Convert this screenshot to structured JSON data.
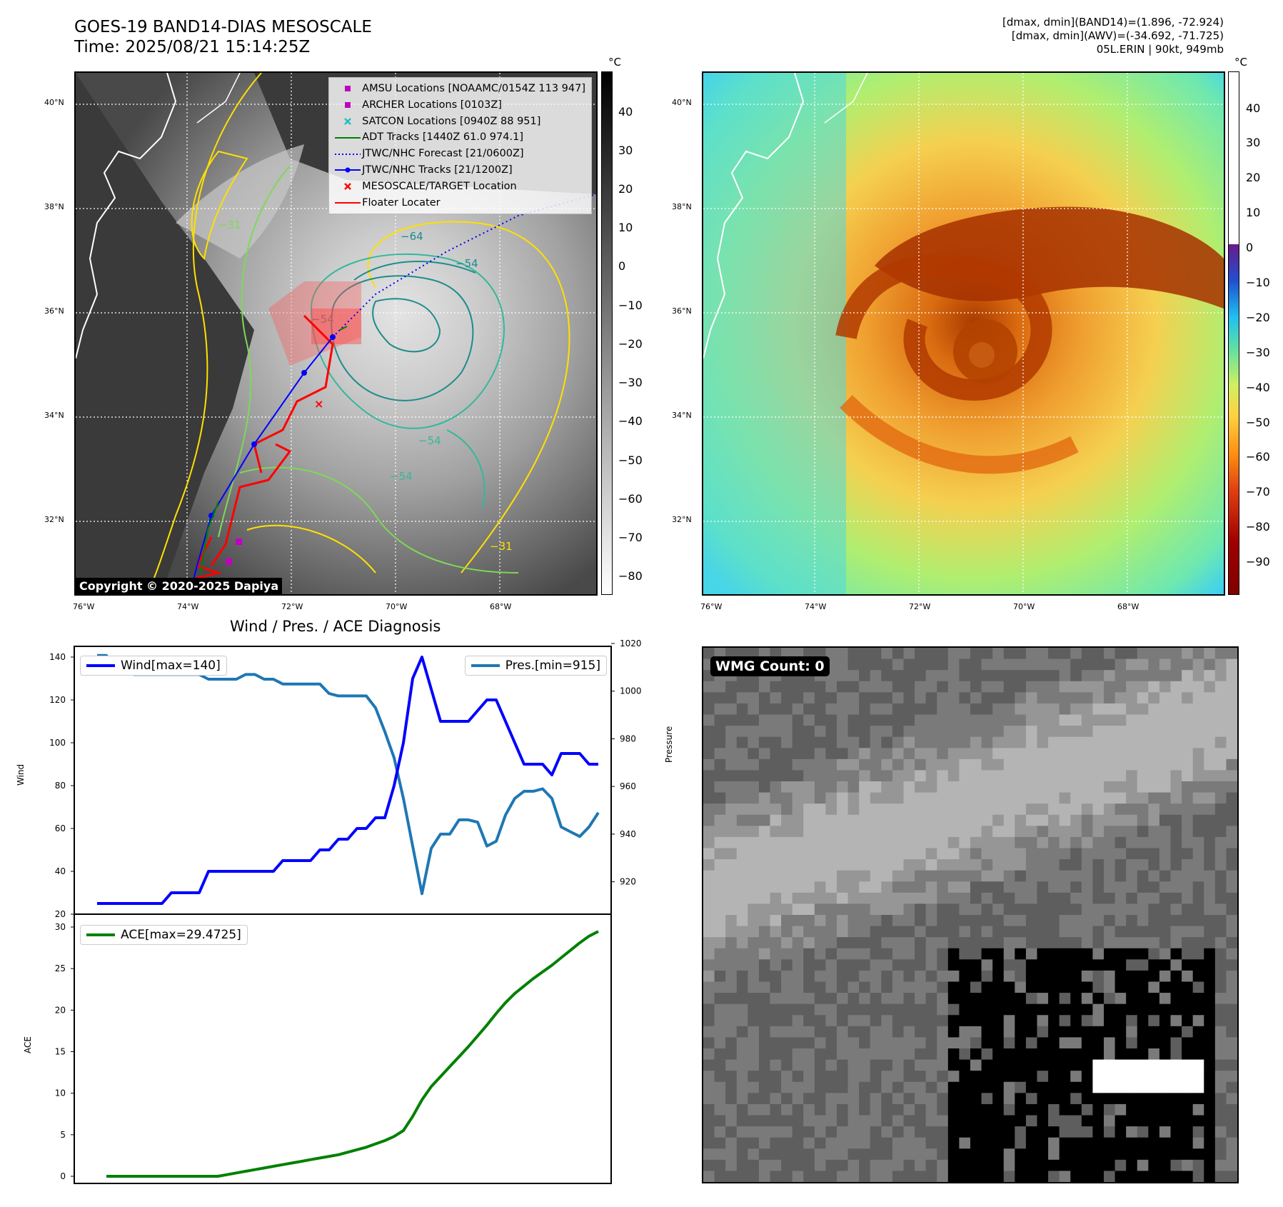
{
  "header": {
    "title_line1": "GOES-19 BAND14-DIAS MESOSCALE",
    "title_line2": "Time: 2025/08/21 15:14:25Z",
    "info_line1": "[dmax, dmin](BAND14)=(1.896, -72.924)",
    "info_line2": "[dmax, dmin](AWV)=(-34.692, -71.725)",
    "info_line3": "05L.ERIN | 90kt, 949mb"
  },
  "map_left": {
    "lat_labels": [
      "40°N",
      "38°N",
      "36°N",
      "34°N",
      "32°N"
    ],
    "lon_labels": [
      "76°W",
      "74°W",
      "72°W",
      "70°W",
      "68°W"
    ],
    "copyright": "Copyright © 2020-2025 Dapiya",
    "colorbar_unit": "°C",
    "colorbar_ticks": [
      "40",
      "30",
      "20",
      "10",
      "0",
      "−10",
      "−20",
      "−30",
      "−40",
      "−50",
      "−60",
      "−70",
      "−80"
    ],
    "contour_labels": [
      "−31",
      "−54",
      "−64",
      "−54",
      "−54",
      "−54",
      "−31"
    ],
    "legend": [
      {
        "label": "AMSU Locations [NOAAMC/0154Z 113 947]",
        "color": "#c000c0",
        "marker": "square"
      },
      {
        "label": "ARCHER Locations [0103Z]",
        "color": "#c000c0",
        "marker": "square"
      },
      {
        "label": "SATCON Locations [0940Z 88 951]",
        "color": "#1fbfbf",
        "marker": "x"
      },
      {
        "label": "ADT Tracks [1440Z 61.0 974.1]",
        "color": "#008000",
        "marker": "line"
      },
      {
        "label": "JTWC/NHC Forecast [21/0600Z]",
        "color": "#0000ff",
        "marker": "dotted"
      },
      {
        "label": "JTWC/NHC Tracks [21/1200Z]",
        "color": "#0000ff",
        "marker": "line-dot"
      },
      {
        "label": "MESOSCALE/TARGET Location",
        "color": "#ff0000",
        "marker": "x"
      },
      {
        "label": "Floater Locater",
        "color": "#ff0000",
        "marker": "line"
      }
    ]
  },
  "map_right": {
    "lat_labels": [
      "40°N",
      "38°N",
      "36°N",
      "34°N",
      "32°N"
    ],
    "lon_labels": [
      "76°W",
      "74°W",
      "72°W",
      "70°W",
      "68°W"
    ],
    "colorbar_unit": "°C",
    "colorbar_ticks": [
      "40",
      "30",
      "20",
      "10",
      "0",
      "−10",
      "−20",
      "−30",
      "−40",
      "−50",
      "−60",
      "−70",
      "−80",
      "−90"
    ]
  },
  "diag": {
    "title": "Wind / Pres. / ACE Diagnosis",
    "wind_ylabel": "Wind",
    "pres_ylabel": "Pressure",
    "ace_ylabel": "ACE",
    "wind_ticks": [
      "140",
      "120",
      "100",
      "80",
      "60",
      "40",
      "20"
    ],
    "pres_ticks": [
      "1020",
      "1000",
      "980",
      "960",
      "940",
      "920"
    ],
    "ace_ticks": [
      "30",
      "25",
      "20",
      "15",
      "10",
      "5",
      "0"
    ]
  },
  "wmg": {
    "label": "WMG Count: 0"
  },
  "chart_data": [
    {
      "type": "line",
      "title": "Wind / Pres. / ACE Diagnosis",
      "ylabel": "Wind",
      "ylabel_right": "Pressure",
      "ylim": [
        20,
        145
      ],
      "ylim_right": [
        910,
        1020
      ],
      "series": [
        {
          "name": "Wind[max=140]",
          "color": "#0000ff",
          "axis": "left",
          "values": [
            25,
            25,
            25,
            25,
            25,
            25,
            25,
            25,
            30,
            30,
            30,
            30,
            40,
            40,
            40,
            40,
            40,
            40,
            40,
            40,
            45,
            45,
            45,
            45,
            50,
            50,
            55,
            55,
            60,
            60,
            65,
            65,
            80,
            100,
            130,
            140,
            125,
            110,
            110,
            110,
            110,
            115,
            120,
            120,
            110,
            100,
            90,
            90,
            90,
            85,
            95,
            95,
            95,
            90,
            90
          ]
        },
        {
          "name": "Pres.[min=915]",
          "color": "#1f77b4",
          "axis": "right",
          "values": [
            1015,
            1015,
            1009,
            1008,
            1007,
            1007,
            1007,
            1007,
            1007,
            1007,
            1007,
            1007,
            1005,
            1005,
            1005,
            1005,
            1007,
            1007,
            1005,
            1005,
            1003,
            1003,
            1003,
            1003,
            1003,
            999,
            998,
            998,
            998,
            998,
            993,
            983,
            972,
            955,
            935,
            915,
            934,
            940,
            940,
            946,
            946,
            945,
            935,
            937,
            948,
            955,
            958,
            958,
            959,
            955,
            943,
            941,
            939,
            943,
            949
          ]
        }
      ]
    },
    {
      "type": "line",
      "ylabel": "ACE",
      "ylim": [
        -1,
        30.5
      ],
      "series": [
        {
          "name": "ACE[max=29.4725]",
          "color": "#008000",
          "values": [
            0,
            0,
            0,
            0,
            0,
            0,
            0,
            0,
            0,
            0,
            0,
            0,
            0,
            0.2,
            0.4,
            0.6,
            0.8,
            1.0,
            1.2,
            1.4,
            1.6,
            1.8,
            2.0,
            2.2,
            2.4,
            2.6,
            2.9,
            3.2,
            3.5,
            3.9,
            4.3,
            4.8,
            5.5,
            7.2,
            9.2,
            10.8,
            12.0,
            13.2,
            14.4,
            15.6,
            16.9,
            18.2,
            19.6,
            20.9,
            22.0,
            22.9,
            23.8,
            24.6,
            25.4,
            26.3,
            27.2,
            28.1,
            28.9,
            29.4725
          ]
        }
      ]
    }
  ]
}
